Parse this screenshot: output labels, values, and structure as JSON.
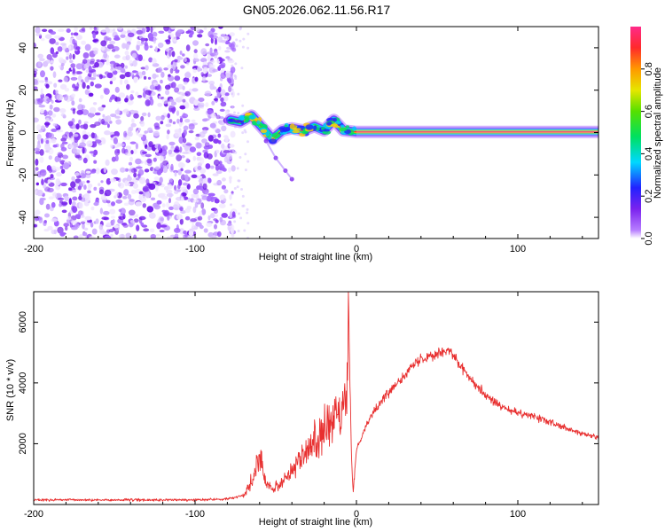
{
  "title": "GN05.2026.062.11.56.R17",
  "colors": {
    "snr_line": "#e83030",
    "spectrum_noise": "#7a22ee",
    "frame": "#000000"
  },
  "chart_data": [
    {
      "type": "heatmap",
      "xlabel": "Height of straight line (km)",
      "ylabel": "Frequency (Hz)",
      "xlim": [
        -200,
        150
      ],
      "ylim": [
        -50,
        50
      ],
      "x_ticks": [
        -200,
        -100,
        0,
        100
      ],
      "x_tick_labels": [
        "-200",
        "-100",
        "0",
        "100"
      ],
      "y_ticks": [
        -40,
        -20,
        0,
        20,
        40
      ],
      "y_tick_labels": [
        "-40",
        "-20",
        "0",
        "20",
        "40"
      ],
      "grid": false,
      "colorbar": {
        "label": "Normalized spectral amplitude",
        "range": [
          0,
          1
        ],
        "ticks": [
          0.0,
          0.2,
          0.4,
          0.6,
          0.8
        ],
        "tick_labels": [
          "0.0",
          "0.2",
          "0.4",
          "0.6",
          "0.8"
        ],
        "colormap": "rainbow"
      },
      "features": {
        "noise_region_x": [
          -200,
          -78
        ],
        "signal_track": [
          {
            "x": -78,
            "y": 6
          },
          {
            "x": -72,
            "y": 5
          },
          {
            "x": -65,
            "y": 8
          },
          {
            "x": -58,
            "y": 2
          },
          {
            "x": -52,
            "y": -3
          },
          {
            "x": -46,
            "y": 1
          },
          {
            "x": -40,
            "y": 2
          },
          {
            "x": -33,
            "y": 1
          },
          {
            "x": -26,
            "y": 3
          },
          {
            "x": -20,
            "y": 1
          },
          {
            "x": -14,
            "y": 6
          },
          {
            "x": -8,
            "y": 1
          },
          {
            "x": 0,
            "y": 0.3
          },
          {
            "x": 150,
            "y": 0.3
          }
        ],
        "faint_branch": [
          {
            "x": -56,
            "y": -4
          },
          {
            "x": -50,
            "y": -12
          },
          {
            "x": -44,
            "y": -18
          },
          {
            "x": -40,
            "y": -22
          }
        ]
      }
    },
    {
      "type": "line",
      "xlabel": "Height of straight line (km)",
      "ylabel": "SNR (10 * v/v)",
      "xlim": [
        -200,
        150
      ],
      "ylim": [
        0,
        7000
      ],
      "x_ticks": [
        -200,
        -100,
        0,
        100
      ],
      "x_tick_labels": [
        "-200",
        "-100",
        "0",
        "100"
      ],
      "y_ticks": [
        2000,
        4000,
        6000
      ],
      "y_tick_labels": [
        "2000",
        "4000",
        "6000"
      ],
      "grid": false,
      "series_envelope": [
        [
          -200,
          150
        ],
        [
          -150,
          150
        ],
        [
          -100,
          150
        ],
        [
          -80,
          180
        ],
        [
          -70,
          300
        ],
        [
          -63,
          1000
        ],
        [
          -60,
          1700
        ],
        [
          -57,
          900
        ],
        [
          -52,
          500
        ],
        [
          -47,
          700
        ],
        [
          -42,
          1000
        ],
        [
          -38,
          1300
        ],
        [
          -34,
          1500
        ],
        [
          -30,
          1800
        ],
        [
          -26,
          2100
        ],
        [
          -22,
          2300
        ],
        [
          -18,
          2500
        ],
        [
          -14,
          2700
        ],
        [
          -10,
          3000
        ],
        [
          -6,
          3200
        ],
        [
          -5,
          6900
        ],
        [
          -4,
          4000
        ],
        [
          -3,
          1500
        ],
        [
          -2,
          400
        ],
        [
          0,
          1800
        ],
        [
          5,
          2500
        ],
        [
          10,
          3000
        ],
        [
          20,
          3700
        ],
        [
          30,
          4300
        ],
        [
          40,
          4800
        ],
        [
          50,
          5000
        ],
        [
          58,
          5100
        ],
        [
          62,
          4700
        ],
        [
          70,
          4200
        ],
        [
          80,
          3600
        ],
        [
          90,
          3200
        ],
        [
          100,
          3000
        ],
        [
          110,
          2900
        ],
        [
          120,
          2700
        ],
        [
          135,
          2400
        ],
        [
          150,
          2200
        ]
      ]
    }
  ]
}
